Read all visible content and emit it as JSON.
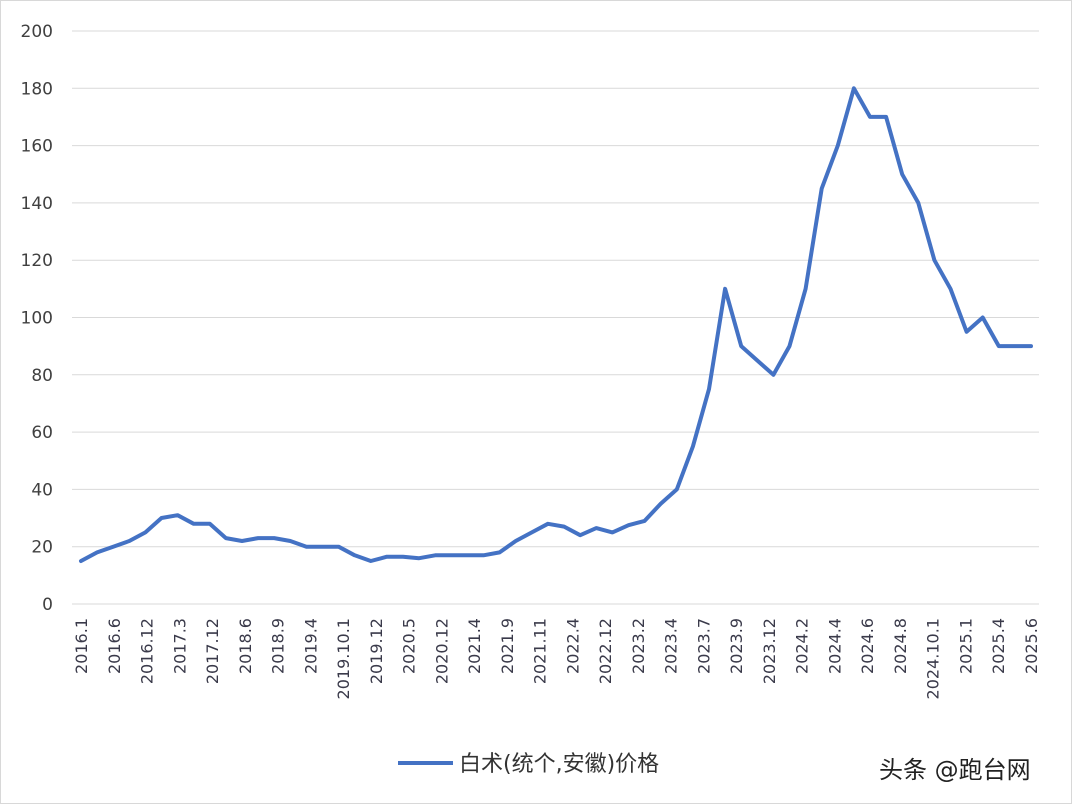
{
  "chart_data": {
    "type": "line",
    "title": "",
    "xlabel": "",
    "ylabel": "",
    "ylim": [
      0,
      200
    ],
    "yticks": [
      0,
      20,
      40,
      60,
      80,
      100,
      120,
      140,
      160,
      180,
      200
    ],
    "grid": true,
    "legend_position": "bottom",
    "x_tick_labels": [
      "2016.1",
      "2016.6",
      "2016.12",
      "2017.3",
      "2017.12",
      "2018.6",
      "2018.9",
      "2019.4",
      "2019.10.1",
      "2019.12",
      "2020.5",
      "2020.12",
      "2021.4",
      "2021.9",
      "2021.11",
      "2022.4",
      "2022.12",
      "2023.2",
      "2023.4",
      "2023.7",
      "2023.9",
      "2023.12",
      "2024.2",
      "2024.4",
      "2024.6",
      "2024.8",
      "2024.10.1",
      "2025.1",
      "2025.4",
      "2025.6"
    ],
    "series": [
      {
        "name": "白术(统个,安徽)价格",
        "color": "#4472C4",
        "values": [
          15,
          18,
          20,
          22,
          25,
          30,
          31,
          28,
          28,
          23,
          22,
          23,
          23,
          22,
          20,
          20,
          20,
          17,
          15,
          16.5,
          16.5,
          16,
          17,
          17,
          17,
          17,
          18,
          22,
          25,
          28,
          27,
          24,
          26.5,
          25,
          27.5,
          29,
          35,
          40,
          55,
          75,
          110,
          90,
          85,
          80,
          90,
          110,
          145,
          160,
          180,
          170,
          170,
          150,
          140,
          120,
          110,
          95,
          100,
          90,
          90,
          90
        ]
      }
    ]
  },
  "watermark": "头条 @跑台网"
}
